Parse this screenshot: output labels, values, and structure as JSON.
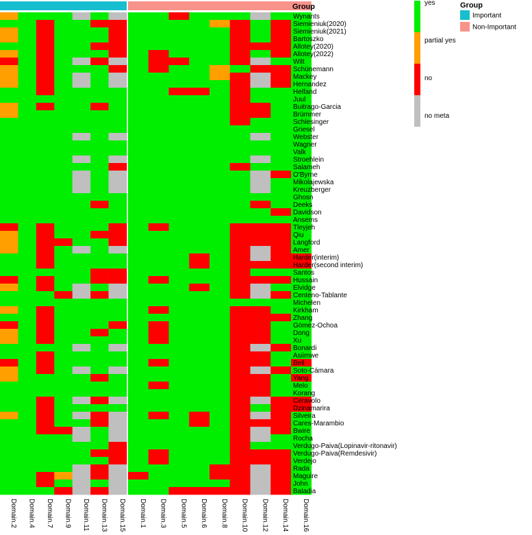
{
  "chart_data": {
    "type": "heatmap",
    "title": "",
    "annotation_title": "Group",
    "columns": [
      {
        "label": "Domain.2",
        "group": "Important"
      },
      {
        "label": "Domain.4",
        "group": "Important"
      },
      {
        "label": "Domain.7",
        "group": "Important"
      },
      {
        "label": "Domain.9",
        "group": "Important"
      },
      {
        "label": "Domain.11",
        "group": "Important"
      },
      {
        "label": "Domain.13",
        "group": "Important"
      },
      {
        "label": "Domain.15",
        "group": "Important"
      },
      {
        "label": "Domain.1",
        "group": "Non-Important"
      },
      {
        "label": "Domain.3",
        "group": "Non-Important"
      },
      {
        "label": "Domain.5",
        "group": "Non-Important"
      },
      {
        "label": "Domain.6",
        "group": "Non-Important"
      },
      {
        "label": "Domain.8",
        "group": "Non-Important"
      },
      {
        "label": "Domain.10",
        "group": "Non-Important"
      },
      {
        "label": "Domain.12",
        "group": "Non-Important"
      },
      {
        "label": "Domain.14",
        "group": "Non-Important"
      },
      {
        "label": "Domain.16",
        "group": "Non-Important"
      }
    ],
    "rows": [
      "Wynants",
      "Siemieniuk(2020)",
      "Siemieniuk(2021)",
      "Bartoszko",
      "Allotey(2020)",
      "Allotey(2022)",
      "Wilt",
      "Schünemann",
      "Mackey",
      "Hernandez",
      "Helfand",
      "Juul",
      "Buitrago-Garcia",
      "Brümmer",
      "Schlesinger",
      "Griesel",
      "Webster",
      "Wagner",
      "Valk",
      "Stroehlein",
      "Salameh",
      "O'Byrne",
      "Mikolajewska",
      "Kreuzberger",
      "Ghosn",
      "Deeks",
      "Davidson",
      "Ansems",
      "Tleyjeh",
      "Qiu",
      "Langford",
      "Amer",
      "Harder(interim)",
      "Harder(second interim)",
      "Santos",
      "Hussain",
      "Elvidge",
      "Centeno-Tablante",
      "Michelen",
      "Kirkham",
      "Zhang",
      "Gómez-Ochoa",
      "Dong",
      "Xu",
      "Bonardi",
      "Asiimwe",
      "Bell",
      "Soto-Cámara",
      "Yang",
      "Melo",
      "Korang",
      "Ceravolo",
      "Dzinamarira",
      "Silveira",
      "Cares-Marambio",
      "Bwire",
      "Rocha",
      "Verdugo-Paiva(Lopinavir-ritonavir)",
      "Verdugo-Paiva(Remdesivir)",
      "Verdejo",
      "Rada",
      "Maguire",
      "John",
      "Baladia"
    ],
    "values": [
      "PYYYMYMYYRYYYMYY",
      "YYRYYRRYYYYPRYRY",
      "PYRYYYRYYYYYRYRY",
      "PYRYYYRYYYYYRYRY",
      "YYRYYRRYYYYYRRRY",
      "PYRYYYRYRYYYRYRY",
      "RYRYMRMYRRYYRMYY",
      "PYRYYYRYRYYPYRRY",
      "PYRYMYMYYYYPRMRY",
      "PYRYMYMYYYYYRMRY",
      "YYRYYYYYYRRYRYYY",
      "YYYYYYYYYYYYRYYY",
      "PYRYYRYYYYYYRRYY",
      "PYYYYYYYYYYYRRYY",
      "YYYYYYYYYYYYRYYY",
      "YYYYYYYYYYYYYYYY",
      "YYYYMYMYYYYYYMYY",
      "YYYYYYYYYYYYYYYY",
      "YYYYYYYYYYYYYYYY",
      "YYYYMYMYYYYYYMYY",
      "YYYYYYRYYYYYRYYY",
      "YYYYMYMYYYYYYMRY",
      "YYYYMYMYYYYYYMYY",
      "YYYYMYMYYYYYYMYY",
      "YYYYYYYYYYYYYYYY",
      "YYYYYRYYYYYYYRYY",
      "YYYYYYYYYYYYYYRY",
      "YYYYYYYYYYYYYYYY",
      "RYRYYYRYRYYYRRRY",
      "PYRYYRRYYYYYRRRY",
      "PYRRYYRYYYYYRRRY",
      "PYRYMYMYYYYYRMRY",
      "YYRYYYYYYYRYRMRR",
      "YYRYYYYYYYRYRRRR",
      "YYYYYRRYYYYYRYYY",
      "RYRYYRRYRYYYRRRY",
      "PYRYMYMYYYRYRMYY",
      "YYYRMRMYYYYYRMRY",
      "YYYYYYYYYYYYYYYY",
      "PYRYYYYYRYYYRRYY",
      "YYRYYYYYYYYYRRRY",
      "RYRYYYRYRYYYRRYY",
      "PYRYYRYYRYYYRRYY",
      "PYRYYYYYRYYYRRYY",
      "YYYYMYMYYYYYRMRY",
      "YYRYYYYYYYYYRRYY",
      "RYRYYYYYRYYYRRYR",
      "PYRYMYMYYYYYRMRY",
      "PYYYYRYYYYYYRRYR",
      "YYYYYYYYRYYYRRYY",
      "YYYYYYYYYYYYRRYY",
      "YYRYMRMYYYYYRMRR",
      "YYRYYYYYYYYYRYRR",
      "PYRYMRMYRYRYRMRY",
      "YYRYYRMYYYRYRRRY",
      "YYRRMYMYYYYYRMRY",
      "YYYYMYMYYYYYRMYY",
      "YYYYYYRYYYYYRYYY",
      "YYYYYRRYRYYYRRRY",
      "YYYYYYRYRYYYRRRY",
      "YYYYMRMYYYYRRMRY",
      "YYRPMRMRYYYRRMRY",
      "YYRYMYMYYYYYRMRY",
      "YYYRMRMYYRRRRMRY"
    ],
    "value_codes": {
      "Y": "yes",
      "P": "partial yes",
      "R": "no",
      "M": "no meta"
    },
    "legend": {
      "title": "",
      "position": "top-right",
      "items": [
        {
          "code": "Y",
          "label": "yes",
          "color": "#00ee00"
        },
        {
          "code": "P",
          "label": "partial yes",
          "color": "#ff9f00"
        },
        {
          "code": "R",
          "label": "no",
          "color": "#ff0000"
        },
        {
          "code": "M",
          "label": "no meta",
          "color": "#bfbfbf"
        }
      ]
    },
    "group_legend": {
      "title": "Group",
      "position": "top-right",
      "items": [
        {
          "label": "Important",
          "color": "#17becf"
        },
        {
          "label": "Non-Important",
          "color": "#f7938b"
        }
      ]
    }
  }
}
